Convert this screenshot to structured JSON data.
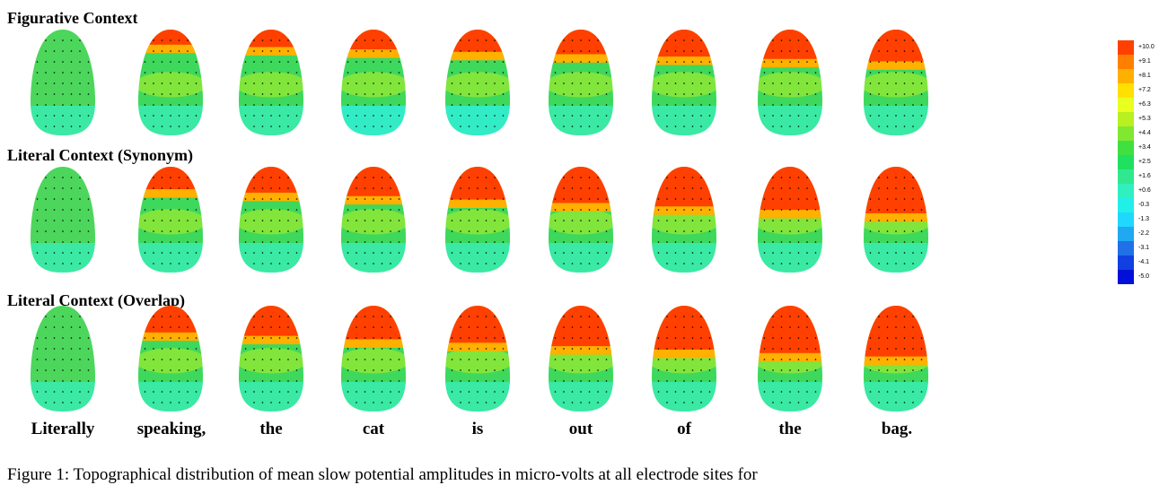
{
  "figure": {
    "rows": [
      {
        "title": "Figurative Context"
      },
      {
        "title": "Literal Context (Synonym)"
      },
      {
        "title": "Literal Context (Overlap)"
      }
    ],
    "words": [
      "Literally",
      "speaking,",
      "the",
      "cat",
      "is",
      "out",
      "of",
      "the",
      "bag."
    ],
    "caption": "Figure 1: Topographical distribution of mean slow potential amplitudes in micro-volts at all electrode sites for"
  },
  "color_scale": {
    "labels": [
      "+10.0",
      "+9.1",
      "+8.1",
      "+7.2",
      "+6.3",
      "+5.3",
      "+4.4",
      "+3.4",
      "+2.5",
      "+1.6",
      "+0.6",
      "-0.3",
      "-1.3",
      "-2.2",
      "-3.1",
      "-4.1",
      "-5.0"
    ],
    "colors": [
      "#ff4000",
      "#ff8000",
      "#ffb000",
      "#ffe000",
      "#e8ff20",
      "#b8f020",
      "#80e830",
      "#40e040",
      "#20e060",
      "#30e890",
      "#30f0c0",
      "#20f0e8",
      "#20d8ff",
      "#20a8f0",
      "#2070e8",
      "#1040e0",
      "#0010d8"
    ]
  }
}
